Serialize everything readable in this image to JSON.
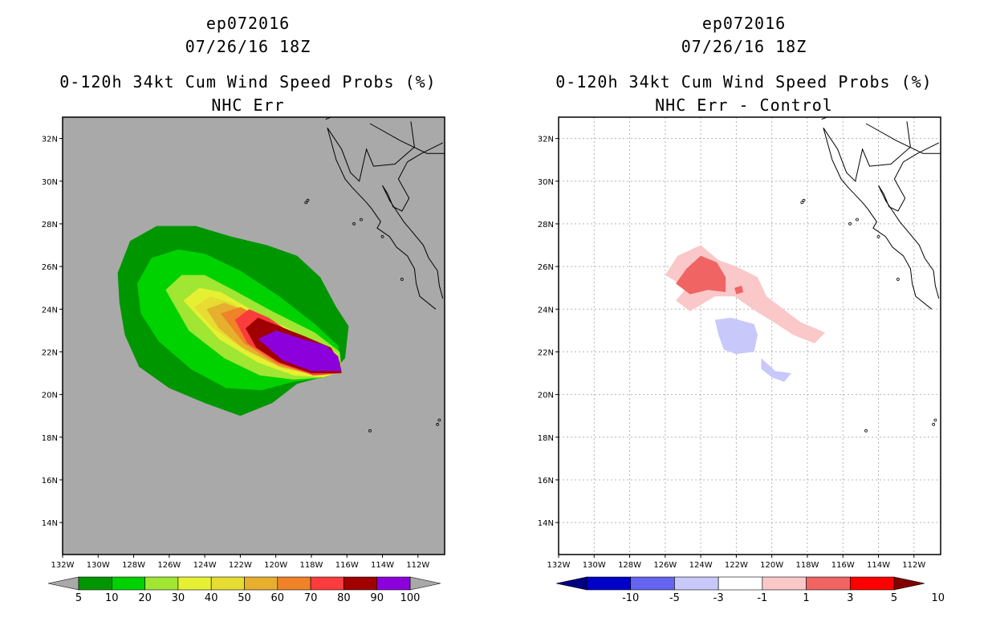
{
  "chart_data": [
    {
      "type": "heatmap",
      "storm_id": "ep072016",
      "datetime": "07/26/16 18Z",
      "title": "0-120h 34kt Cum Wind Speed Probs (%)",
      "subtitle": "NHC Err",
      "xlabel": "",
      "ylabel": "",
      "xlim": [
        -132,
        -110.5
      ],
      "ylim": [
        12.5,
        33
      ],
      "x_tick_labels": [
        "132W",
        "130W",
        "128W",
        "126W",
        "124W",
        "122W",
        "120W",
        "118W",
        "116W",
        "114W",
        "112W"
      ],
      "y_tick_labels": [
        "14N",
        "16N",
        "18N",
        "20N",
        "22N",
        "24N",
        "26N",
        "28N",
        "30N",
        "32N"
      ],
      "grid": false,
      "background": "#a9a9a9",
      "colorbar": {
        "labels": [
          "5",
          "10",
          "20",
          "30",
          "40",
          "50",
          "60",
          "70",
          "80",
          "90",
          "100"
        ],
        "colors": [
          "#009600",
          "#00d200",
          "#a0e632",
          "#e6f032",
          "#e6dc32",
          "#e6af2d",
          "#f08228",
          "#fa3c3c",
          "#a00000",
          "#8c00dc"
        ],
        "under_color": "#a9a9a9",
        "over_color": "#a9a9a9"
      },
      "contours": [
        {
          "level": 5,
          "color": "#009600",
          "polygon": [
            [
              -128.9,
              25.7
            ],
            [
              -128.2,
              27.2
            ],
            [
              -126.7,
              27.9
            ],
            [
              -124.5,
              27.9
            ],
            [
              -122.5,
              27.4
            ],
            [
              -120.5,
              27.0
            ],
            [
              -118.8,
              26.5
            ],
            [
              -117.5,
              25.5
            ],
            [
              -116.6,
              24.1
            ],
            [
              -115.9,
              23.2
            ],
            [
              -116.1,
              21.7
            ],
            [
              -117.0,
              20.9
            ],
            [
              -118.8,
              20.5
            ],
            [
              -120.2,
              19.6
            ],
            [
              -122.0,
              19.0
            ],
            [
              -124.0,
              19.6
            ],
            [
              -126.0,
              20.3
            ],
            [
              -127.7,
              21.3
            ],
            [
              -128.5,
              22.8
            ],
            [
              -128.8,
              24.3
            ]
          ]
        },
        {
          "level": 10,
          "color": "#00d200",
          "polygon": [
            [
              -127.8,
              25.2
            ],
            [
              -127.0,
              26.4
            ],
            [
              -125.5,
              26.8
            ],
            [
              -124.0,
              26.6
            ],
            [
              -122.0,
              25.8
            ],
            [
              -119.8,
              24.6
            ],
            [
              -117.8,
              23.3
            ],
            [
              -116.5,
              22.3
            ],
            [
              -116.3,
              21.2
            ],
            [
              -117.2,
              20.8
            ],
            [
              -119.0,
              20.6
            ],
            [
              -120.8,
              20.2
            ],
            [
              -122.8,
              20.3
            ],
            [
              -124.8,
              21.2
            ],
            [
              -126.6,
              22.5
            ],
            [
              -127.6,
              23.8
            ]
          ]
        },
        {
          "level": 20,
          "color": "#a0e632",
          "polygon": [
            [
              -126.2,
              24.9
            ],
            [
              -125.3,
              25.6
            ],
            [
              -124.0,
              25.6
            ],
            [
              -122.4,
              24.9
            ],
            [
              -120.2,
              23.9
            ],
            [
              -117.8,
              22.9
            ],
            [
              -116.4,
              22.0
            ],
            [
              -116.3,
              21.1
            ],
            [
              -117.3,
              20.8
            ],
            [
              -119.0,
              20.7
            ],
            [
              -120.9,
              20.9
            ],
            [
              -122.9,
              21.7
            ],
            [
              -124.9,
              23.0
            ]
          ]
        },
        {
          "level": 30,
          "color": "#e6f032",
          "polygon": [
            [
              -125.2,
              24.4
            ],
            [
              -124.3,
              25.0
            ],
            [
              -123.1,
              24.8
            ],
            [
              -121.0,
              23.8
            ],
            [
              -118.6,
              22.8
            ],
            [
              -116.5,
              21.9
            ],
            [
              -116.3,
              21.1
            ],
            [
              -117.3,
              20.8
            ],
            [
              -119.0,
              20.9
            ],
            [
              -121.0,
              21.5
            ],
            [
              -123.2,
              22.6
            ]
          ]
        },
        {
          "level": 40,
          "color": "#e6dc32",
          "polygon": [
            [
              -124.6,
              24.1
            ],
            [
              -123.7,
              24.6
            ],
            [
              -122.5,
              24.3
            ],
            [
              -120.5,
              23.3
            ],
            [
              -118.1,
              22.5
            ],
            [
              -116.4,
              21.7
            ],
            [
              -116.3,
              21.0
            ],
            [
              -117.5,
              20.9
            ],
            [
              -119.5,
              21.2
            ],
            [
              -121.6,
              22.0
            ],
            [
              -123.5,
              23.1
            ]
          ]
        },
        {
          "level": 50,
          "color": "#e6af2d",
          "polygon": [
            [
              -123.9,
              24.0
            ],
            [
              -122.9,
              24.3
            ],
            [
              -121.6,
              23.9
            ],
            [
              -119.8,
              22.9
            ],
            [
              -117.8,
              22.3
            ],
            [
              -116.4,
              21.6
            ],
            [
              -116.3,
              21.0
            ],
            [
              -117.7,
              20.9
            ],
            [
              -119.8,
              21.3
            ],
            [
              -121.9,
              22.2
            ],
            [
              -123.2,
              23.1
            ]
          ]
        },
        {
          "level": 60,
          "color": "#f08228",
          "polygon": [
            [
              -123.1,
              23.8
            ],
            [
              -122.0,
              24.1
            ],
            [
              -120.8,
              23.6
            ],
            [
              -119.2,
              22.8
            ],
            [
              -117.4,
              22.2
            ],
            [
              -116.4,
              21.5
            ],
            [
              -116.3,
              21.0
            ],
            [
              -117.8,
              20.9
            ],
            [
              -119.9,
              21.4
            ],
            [
              -121.8,
              22.4
            ]
          ]
        },
        {
          "level": 70,
          "color": "#fa3c3c",
          "polygon": [
            [
              -122.3,
              23.5
            ],
            [
              -121.5,
              24.0
            ],
            [
              -120.4,
              23.6
            ],
            [
              -119.0,
              22.8
            ],
            [
              -117.2,
              22.2
            ],
            [
              -116.4,
              21.5
            ],
            [
              -116.3,
              21.0
            ],
            [
              -117.9,
              20.9
            ],
            [
              -119.9,
              21.5
            ],
            [
              -121.6,
              22.4
            ]
          ]
        },
        {
          "level": 80,
          "color": "#a00000",
          "polygon": [
            [
              -121.7,
              23.1
            ],
            [
              -121.0,
              23.6
            ],
            [
              -119.8,
              23.2
            ],
            [
              -118.3,
              22.7
            ],
            [
              -116.9,
              22.2
            ],
            [
              -116.4,
              21.5
            ],
            [
              -116.3,
              21.0
            ],
            [
              -118.0,
              21.0
            ],
            [
              -119.8,
              21.5
            ],
            [
              -121.1,
              22.2
            ]
          ]
        },
        {
          "level": 90,
          "color": "#8c00dc",
          "polygon": [
            [
              -121.0,
              22.6
            ],
            [
              -120.0,
              23.0
            ],
            [
              -118.5,
              22.6
            ],
            [
              -117.2,
              22.3
            ],
            [
              -116.5,
              21.8
            ],
            [
              -116.3,
              21.1
            ],
            [
              -118.0,
              21.1
            ],
            [
              -119.6,
              21.6
            ]
          ]
        }
      ]
    },
    {
      "type": "heatmap",
      "storm_id": "ep072016",
      "datetime": "07/26/16 18Z",
      "title": "0-120h 34kt Cum Wind Speed Probs (%)",
      "subtitle": "NHC Err - Control",
      "xlabel": "",
      "ylabel": "",
      "xlim": [
        -132,
        -110.5
      ],
      "ylim": [
        12.5,
        33
      ],
      "x_tick_labels": [
        "132W",
        "130W",
        "128W",
        "126W",
        "124W",
        "122W",
        "120W",
        "118W",
        "116W",
        "114W",
        "112W"
      ],
      "y_tick_labels": [
        "14N",
        "16N",
        "18N",
        "20N",
        "22N",
        "24N",
        "26N",
        "28N",
        "30N",
        "32N"
      ],
      "grid": true,
      "background": "#ffffff",
      "colorbar": {
        "labels": [
          "-10",
          "-5",
          "-3",
          "-1",
          "1",
          "3",
          "5",
          "10"
        ],
        "colors": [
          "#0000c8",
          "#6464f0",
          "#c8c8fa",
          "#ffffff",
          "#fac8c8",
          "#f06464",
          "#ff0000"
        ],
        "under_color": "#000080",
        "over_color": "#800000"
      },
      "contours": [
        {
          "level": 1,
          "color": "#fac8c8",
          "polygon": [
            [
              -126.0,
              25.6
            ],
            [
              -125.3,
              26.5
            ],
            [
              -124.0,
              27.0
            ],
            [
              -123.0,
              26.3
            ],
            [
              -122.0,
              26.0
            ],
            [
              -120.8,
              25.5
            ],
            [
              -120.3,
              24.6
            ],
            [
              -119.5,
              24.1
            ],
            [
              -118.4,
              23.4
            ],
            [
              -117.0,
              22.9
            ],
            [
              -117.6,
              22.4
            ],
            [
              -118.8,
              22.8
            ],
            [
              -119.9,
              23.4
            ],
            [
              -120.9,
              23.9
            ],
            [
              -122.1,
              24.6
            ],
            [
              -123.2,
              24.6
            ],
            [
              -124.6,
              23.9
            ],
            [
              -125.4,
              24.4
            ],
            [
              -124.8,
              25.0
            ]
          ]
        },
        {
          "level": 3,
          "color": "#f06464",
          "polygon": [
            [
              -125.4,
              25.2
            ],
            [
              -124.8,
              25.9
            ],
            [
              -124.0,
              26.5
            ],
            [
              -123.1,
              26.2
            ],
            [
              -122.6,
              25.5
            ],
            [
              -122.6,
              24.8
            ],
            [
              -123.6,
              24.9
            ],
            [
              -124.6,
              24.7
            ]
          ]
        },
        {
          "level": 3,
          "color": "#f06464",
          "polygon": [
            [
              -122.1,
              25.0
            ],
            [
              -121.7,
              25.1
            ],
            [
              -121.6,
              24.8
            ],
            [
              -122.0,
              24.7
            ]
          ]
        },
        {
          "level": -1,
          "color": "#c8c8fa",
          "polygon": [
            [
              -123.2,
              23.5
            ],
            [
              -122.3,
              23.6
            ],
            [
              -121.0,
              23.3
            ],
            [
              -120.8,
              22.8
            ],
            [
              -121.0,
              22.0
            ],
            [
              -122.0,
              21.9
            ],
            [
              -122.7,
              22.1
            ],
            [
              -123.0,
              22.8
            ]
          ]
        },
        {
          "level": -1,
          "color": "#c8c8fa",
          "polygon": [
            [
              -120.6,
              21.7
            ],
            [
              -119.8,
              21.1
            ],
            [
              -118.9,
              21.0
            ],
            [
              -119.3,
              20.6
            ],
            [
              -120.0,
              20.8
            ],
            [
              -120.6,
              21.2
            ]
          ]
        }
      ]
    }
  ]
}
